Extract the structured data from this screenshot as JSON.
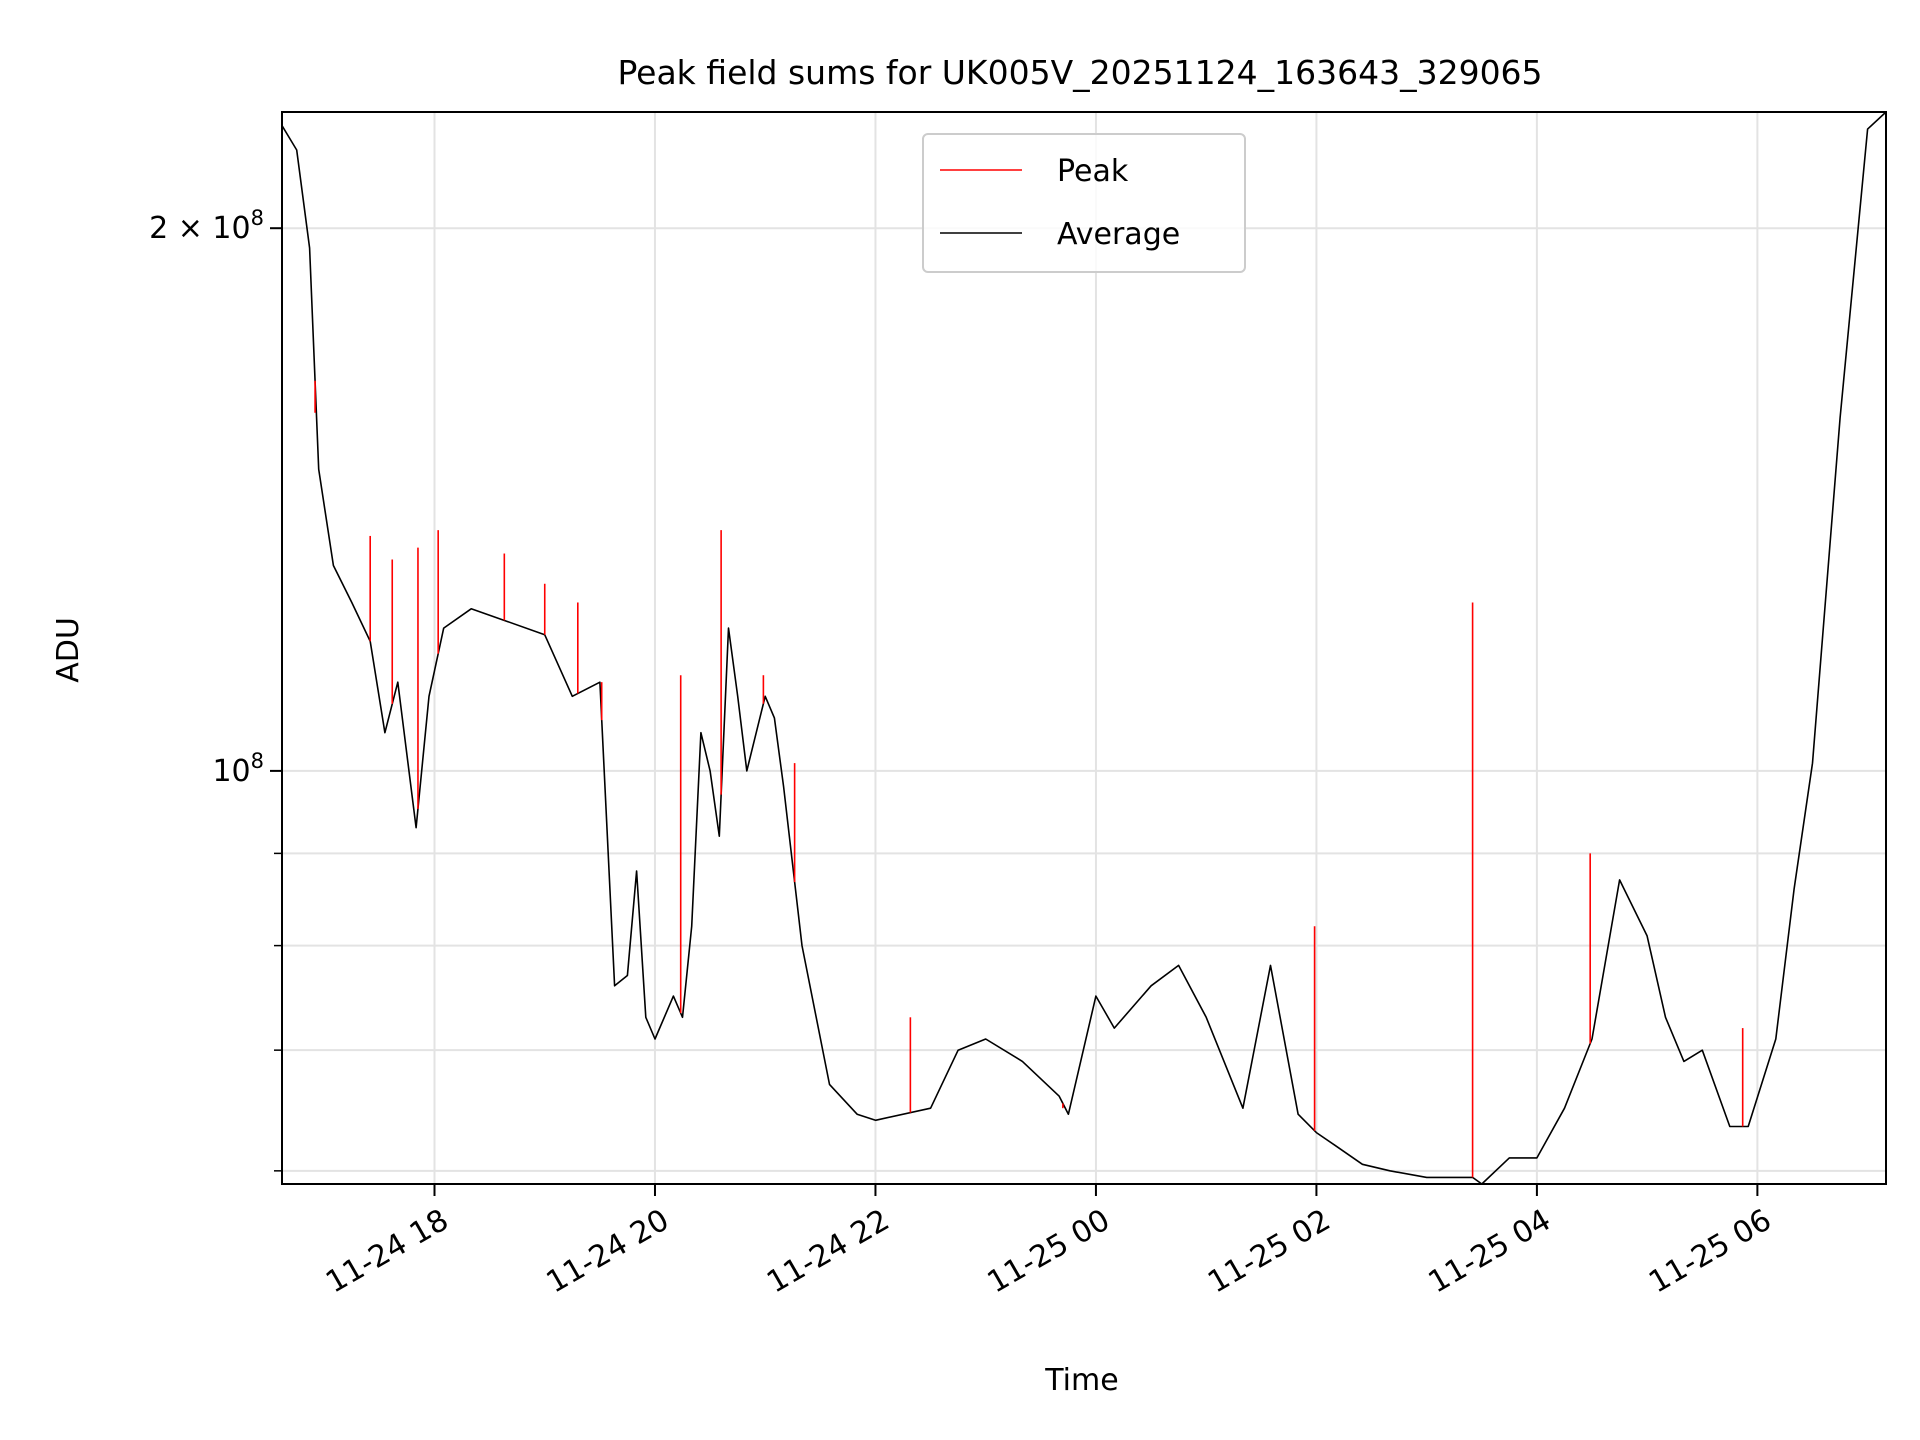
{
  "chart_data": {
    "type": "line",
    "title": "Peak field sums for UK005V_20251124_163643_329065",
    "xlabel": "Time",
    "ylabel": "ADU",
    "x_type": "datetime",
    "xlim": [
      "2025-11-24 16:37",
      "2025-11-25 07:10"
    ],
    "ylim": [
      59000000,
      232000000
    ],
    "y_scale": "log",
    "grid": true,
    "legend": "upper center",
    "x_ticks": [
      {
        "value": "2025-11-24 18:00",
        "label": "11-24 18"
      },
      {
        "value": "2025-11-24 20:00",
        "label": "11-24 20"
      },
      {
        "value": "2025-11-24 22:00",
        "label": "11-24 22"
      },
      {
        "value": "2025-11-25 00:00",
        "label": "11-25 00"
      },
      {
        "value": "2025-11-25 02:00",
        "label": "11-25 02"
      },
      {
        "value": "2025-11-25 04:00",
        "label": "11-25 04"
      },
      {
        "value": "2025-11-25 06:00",
        "label": "11-25 06"
      }
    ],
    "y_major_ticks": [
      {
        "value": 100000000,
        "base": "10",
        "exp": "8",
        "mantissa": ""
      },
      {
        "value": 200000000,
        "base": "10",
        "exp": "8",
        "mantissa": "2 × "
      }
    ],
    "y_minor_ticks": [
      60000000,
      70000000,
      80000000,
      90000000
    ],
    "series": [
      {
        "name": "Peak",
        "color": "#ff0000",
        "x": [
          "2025-11-24 16:37",
          "2025-11-24 16:55",
          "2025-11-24 17:25",
          "2025-11-24 17:37",
          "2025-11-24 17:51",
          "2025-11-24 18:02",
          "2025-11-24 18:38",
          "2025-11-24 19:00",
          "2025-11-24 19:18",
          "2025-11-24 19:31",
          "2025-11-24 20:14",
          "2025-11-24 20:36",
          "2025-11-24 20:59",
          "2025-11-24 21:16",
          "2025-11-24 22:19",
          "2025-11-24 23:42",
          "2025-11-25 01:59",
          "2025-11-25 03:25",
          "2025-11-25 04:29",
          "2025-11-25 05:52"
        ],
        "y": [
          232000000,
          158000000,
          135000000,
          131000000,
          133000000,
          136000000,
          132000000,
          127000000,
          124000000,
          112000000,
          113000000,
          136000000,
          113000000,
          101000000,
          73000000,
          65000000,
          82000000,
          124000000,
          90000000,
          72000000
        ]
      },
      {
        "name": "Average",
        "color": "#000000",
        "x": [
          "2025-11-24 16:37",
          "2025-11-24 16:45",
          "2025-11-24 16:52",
          "2025-11-24 16:57",
          "2025-11-24 17:05",
          "2025-11-24 17:15",
          "2025-11-24 17:25",
          "2025-11-24 17:33",
          "2025-11-24 17:40",
          "2025-11-24 17:50",
          "2025-11-24 17:57",
          "2025-11-24 18:05",
          "2025-11-24 18:20",
          "2025-11-24 18:40",
          "2025-11-24 19:00",
          "2025-11-24 19:15",
          "2025-11-24 19:30",
          "2025-11-24 19:38",
          "2025-11-24 19:45",
          "2025-11-24 19:50",
          "2025-11-24 19:55",
          "2025-11-24 20:00",
          "2025-11-24 20:10",
          "2025-11-24 20:15",
          "2025-11-24 20:20",
          "2025-11-24 20:25",
          "2025-11-24 20:30",
          "2025-11-24 20:35",
          "2025-11-24 20:40",
          "2025-11-24 20:45",
          "2025-11-24 20:50",
          "2025-11-24 21:00",
          "2025-11-24 21:05",
          "2025-11-24 21:10",
          "2025-11-24 21:20",
          "2025-11-24 21:35",
          "2025-11-24 21:50",
          "2025-11-24 22:00",
          "2025-11-24 22:30",
          "2025-11-24 22:45",
          "2025-11-24 23:00",
          "2025-11-24 23:20",
          "2025-11-24 23:40",
          "2025-11-24 23:45",
          "2025-11-25 00:00",
          "2025-11-25 00:10",
          "2025-11-25 00:30",
          "2025-11-25 00:45",
          "2025-11-25 01:00",
          "2025-11-25 01:20",
          "2025-11-25 01:35",
          "2025-11-25 01:50",
          "2025-11-25 02:00",
          "2025-11-25 02:10",
          "2025-11-25 02:25",
          "2025-11-25 02:40",
          "2025-11-25 03:00",
          "2025-11-25 03:25",
          "2025-11-25 03:30",
          "2025-11-25 03:45",
          "2025-11-25 04:00",
          "2025-11-25 04:15",
          "2025-11-25 04:30",
          "2025-11-25 04:45",
          "2025-11-25 05:00",
          "2025-11-25 05:10",
          "2025-11-25 05:20",
          "2025-11-25 05:30",
          "2025-11-25 05:45",
          "2025-11-25 05:55",
          "2025-11-25 06:10",
          "2025-11-25 06:20",
          "2025-11-25 06:30",
          "2025-11-25 06:45",
          "2025-11-25 07:00",
          "2025-11-25 07:10"
        ],
        "y": [
          228000000,
          221000000,
          195000000,
          147000000,
          130000000,
          124000000,
          118000000,
          105000000,
          112000000,
          93000000,
          110000000,
          120000000,
          123000000,
          121000000,
          119000000,
          110000000,
          112000000,
          76000000,
          77000000,
          88000000,
          73000000,
          71000000,
          75000000,
          73000000,
          82000000,
          105000000,
          100000000,
          92000000,
          120000000,
          110000000,
          100000000,
          110000000,
          107000000,
          98000000,
          80000000,
          67000000,
          64500000,
          64000000,
          65000000,
          70000000,
          71000000,
          69000000,
          66000000,
          64500000,
          75000000,
          72000000,
          76000000,
          78000000,
          73000000,
          65000000,
          78000000,
          64500000,
          63000000,
          62000000,
          60500000,
          60000000,
          59500000,
          59500000,
          59000000,
          61000000,
          61000000,
          65000000,
          71000000,
          87000000,
          81000000,
          73000000,
          69000000,
          70000000,
          63500000,
          63500000,
          71000000,
          86000000,
          101000000,
          157000000,
          227000000,
          232000000
        ]
      }
    ]
  }
}
